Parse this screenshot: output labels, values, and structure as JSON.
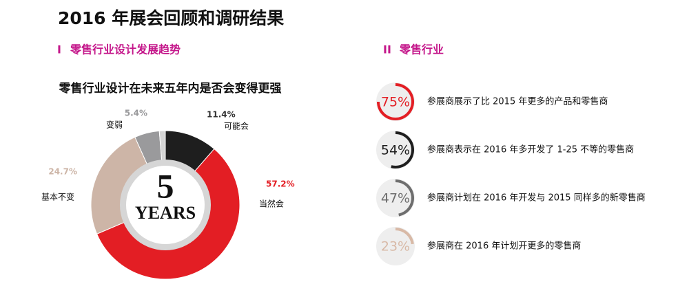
{
  "header": {
    "title": "2016 年展会回顾和调研结果"
  },
  "left": {
    "number": "I",
    "heading": "零售行业设计发展趋势"
  },
  "right": {
    "number": "II",
    "heading": "零售行业"
  },
  "chart_data": [
    {
      "type": "donut",
      "title": "零售行业设计在未来五年内是否会变得更强",
      "center_labels": [
        "5",
        "YEARS"
      ],
      "categories": [
        "可能会",
        "当然会",
        "基本不变",
        "变弱",
        null
      ],
      "values": [
        11.4,
        57.2,
        24.7,
        5.4,
        1.3
      ],
      "value_labels": [
        "11.4%",
        "57.2%",
        "24.7%",
        "5.4%",
        null
      ],
      "colors": [
        "#1e1e1e",
        "#e31e24",
        "#cdb5a7",
        "#9a9a9c",
        "#d4d4d4"
      ]
    },
    {
      "type": "progress",
      "categories": [
        "参展商展示了比 2015 年更多的产品和零售商",
        "参展商表示在 2016 年多开发了 1-25 不等的零售商",
        "参展商计划在 2016 年开发与 2015 同样多的新零售商",
        "参展商在 2016 年计划开更多的零售商"
      ],
      "values": [
        75,
        54,
        47,
        23
      ],
      "value_labels": [
        "75%",
        "54%",
        "47%",
        "23%"
      ],
      "colors": [
        "#e31e24",
        "#1e1e1e",
        "#6e6e6e",
        "#d8b9a6"
      ]
    }
  ]
}
